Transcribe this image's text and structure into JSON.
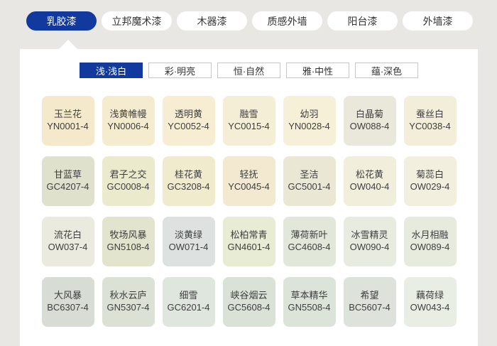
{
  "colors": {
    "background": "#e8e7e4",
    "panel": "#ffffff",
    "accent_blue": "#12399e",
    "tab_text": "#333333",
    "swatch_text": "#3e3e3e"
  },
  "main_tabs": [
    {
      "label": "乳胶漆",
      "selected": true
    },
    {
      "label": "立邦魔术漆",
      "selected": false
    },
    {
      "label": "木器漆",
      "selected": false
    },
    {
      "label": "质感外墙",
      "selected": false
    },
    {
      "label": "阳台漆",
      "selected": false
    },
    {
      "label": "外墙漆",
      "selected": false
    }
  ],
  "sub_tabs": [
    {
      "label": "浅·浅白",
      "selected": true
    },
    {
      "label": "彩·明亮",
      "selected": false
    },
    {
      "label": "恒·自然",
      "selected": false
    },
    {
      "label": "雅·中性",
      "selected": false
    },
    {
      "label": "蕴·深色",
      "selected": false
    }
  ],
  "swatches": [
    {
      "name": "玉兰花",
      "code": "YN0001-4",
      "color": "#f4e9cb"
    },
    {
      "name": "浅黄帷幔",
      "code": "YN0006-4",
      "color": "#f5eccf"
    },
    {
      "name": "透明黄",
      "code": "YC0052-4",
      "color": "#f6edd3"
    },
    {
      "name": "融雪",
      "code": "YC0015-4",
      "color": "#f5eed7"
    },
    {
      "name": "幼羽",
      "code": "YN0028-4",
      "color": "#f6f0d9"
    },
    {
      "name": "白晶菊",
      "code": "OW088-4",
      "color": "#eae8db"
    },
    {
      "name": "蚕丝白",
      "code": "YC0038-4",
      "color": "#f3eed9"
    },
    {
      "name": "甘蓝草",
      "code": "GC4207-4",
      "color": "#dfe1cc"
    },
    {
      "name": "君子之交",
      "code": "GC0008-4",
      "color": "#eceacc"
    },
    {
      "name": "桂花黄",
      "code": "GC3208-4",
      "color": "#efebcc"
    },
    {
      "name": "轻抚",
      "code": "YC0045-4",
      "color": "#f2e9d0"
    },
    {
      "name": "圣洁",
      "code": "GC5001-4",
      "color": "#eae7d4"
    },
    {
      "name": "松花黄",
      "code": "OW040-4",
      "color": "#f1eedc"
    },
    {
      "name": "菊蕊白",
      "code": "OW029-4",
      "color": "#f2efdf"
    },
    {
      "name": "流花白",
      "code": "OW037-4",
      "color": "#ebeade"
    },
    {
      "name": "牧场风暴",
      "code": "GN5108-4",
      "color": "#e2e4ce"
    },
    {
      "name": "淡黄绿",
      "code": "OW071-4",
      "color": "#dde2e0"
    },
    {
      "name": "松柏常青",
      "code": "GN4601-4",
      "color": "#e8ecd5"
    },
    {
      "name": "薄荷新叶",
      "code": "GC4608-4",
      "color": "#e1e8da"
    },
    {
      "name": "冰雪精灵",
      "code": "OW090-4",
      "color": "#e8ece0"
    },
    {
      "name": "水月相融",
      "code": "OW089-4",
      "color": "#e6ebde"
    },
    {
      "name": "大风暴",
      "code": "BC6307-4",
      "color": "#d7ddd4"
    },
    {
      "name": "秋水云庐",
      "code": "GN5307-4",
      "color": "#dbe2d5"
    },
    {
      "name": "细雪",
      "code": "GC6201-4",
      "color": "#dfe6dd"
    },
    {
      "name": "峡谷烟云",
      "code": "GC5608-4",
      "color": "#dae2d8"
    },
    {
      "name": "草本精华",
      "code": "GN5508-4",
      "color": "#dce4da"
    },
    {
      "name": "希望",
      "code": "BC5607-4",
      "color": "#dde3db"
    },
    {
      "name": "藕荷绿",
      "code": "OW043-4",
      "color": "#e8eee4"
    }
  ]
}
